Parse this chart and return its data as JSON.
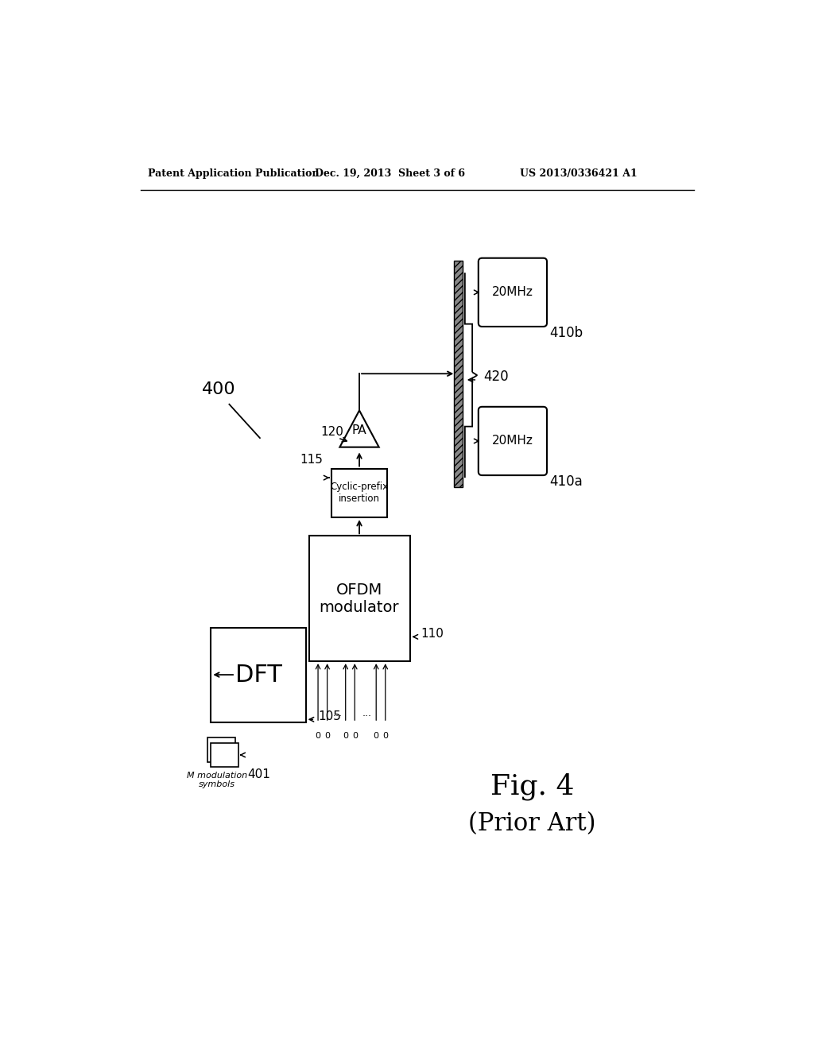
{
  "header_left": "Patent Application Publication",
  "header_mid": "Dec. 19, 2013  Sheet 3 of 6",
  "header_right": "US 2013/0336421 A1",
  "fig_label": "Fig. 4",
  "fig_sublabel": "(Prior Art)",
  "label_400": "400",
  "label_401": "401",
  "label_105": "105",
  "label_110": "110",
  "label_115": "115",
  "label_120": "120",
  "label_420": "420",
  "label_410a": "410a",
  "label_410b": "410b",
  "box_dft_label": "DFT",
  "box_ofdm_label": "OFDM\nmodulator",
  "box_cp_label": "Cyclic-prefix\ninsertion",
  "pa_label": "PA",
  "freq_a_label": "20MHz",
  "freq_b_label": "20MHz",
  "modulation_label": "M modulation\nsymbols",
  "background_color": "#ffffff",
  "line_color": "#000000"
}
